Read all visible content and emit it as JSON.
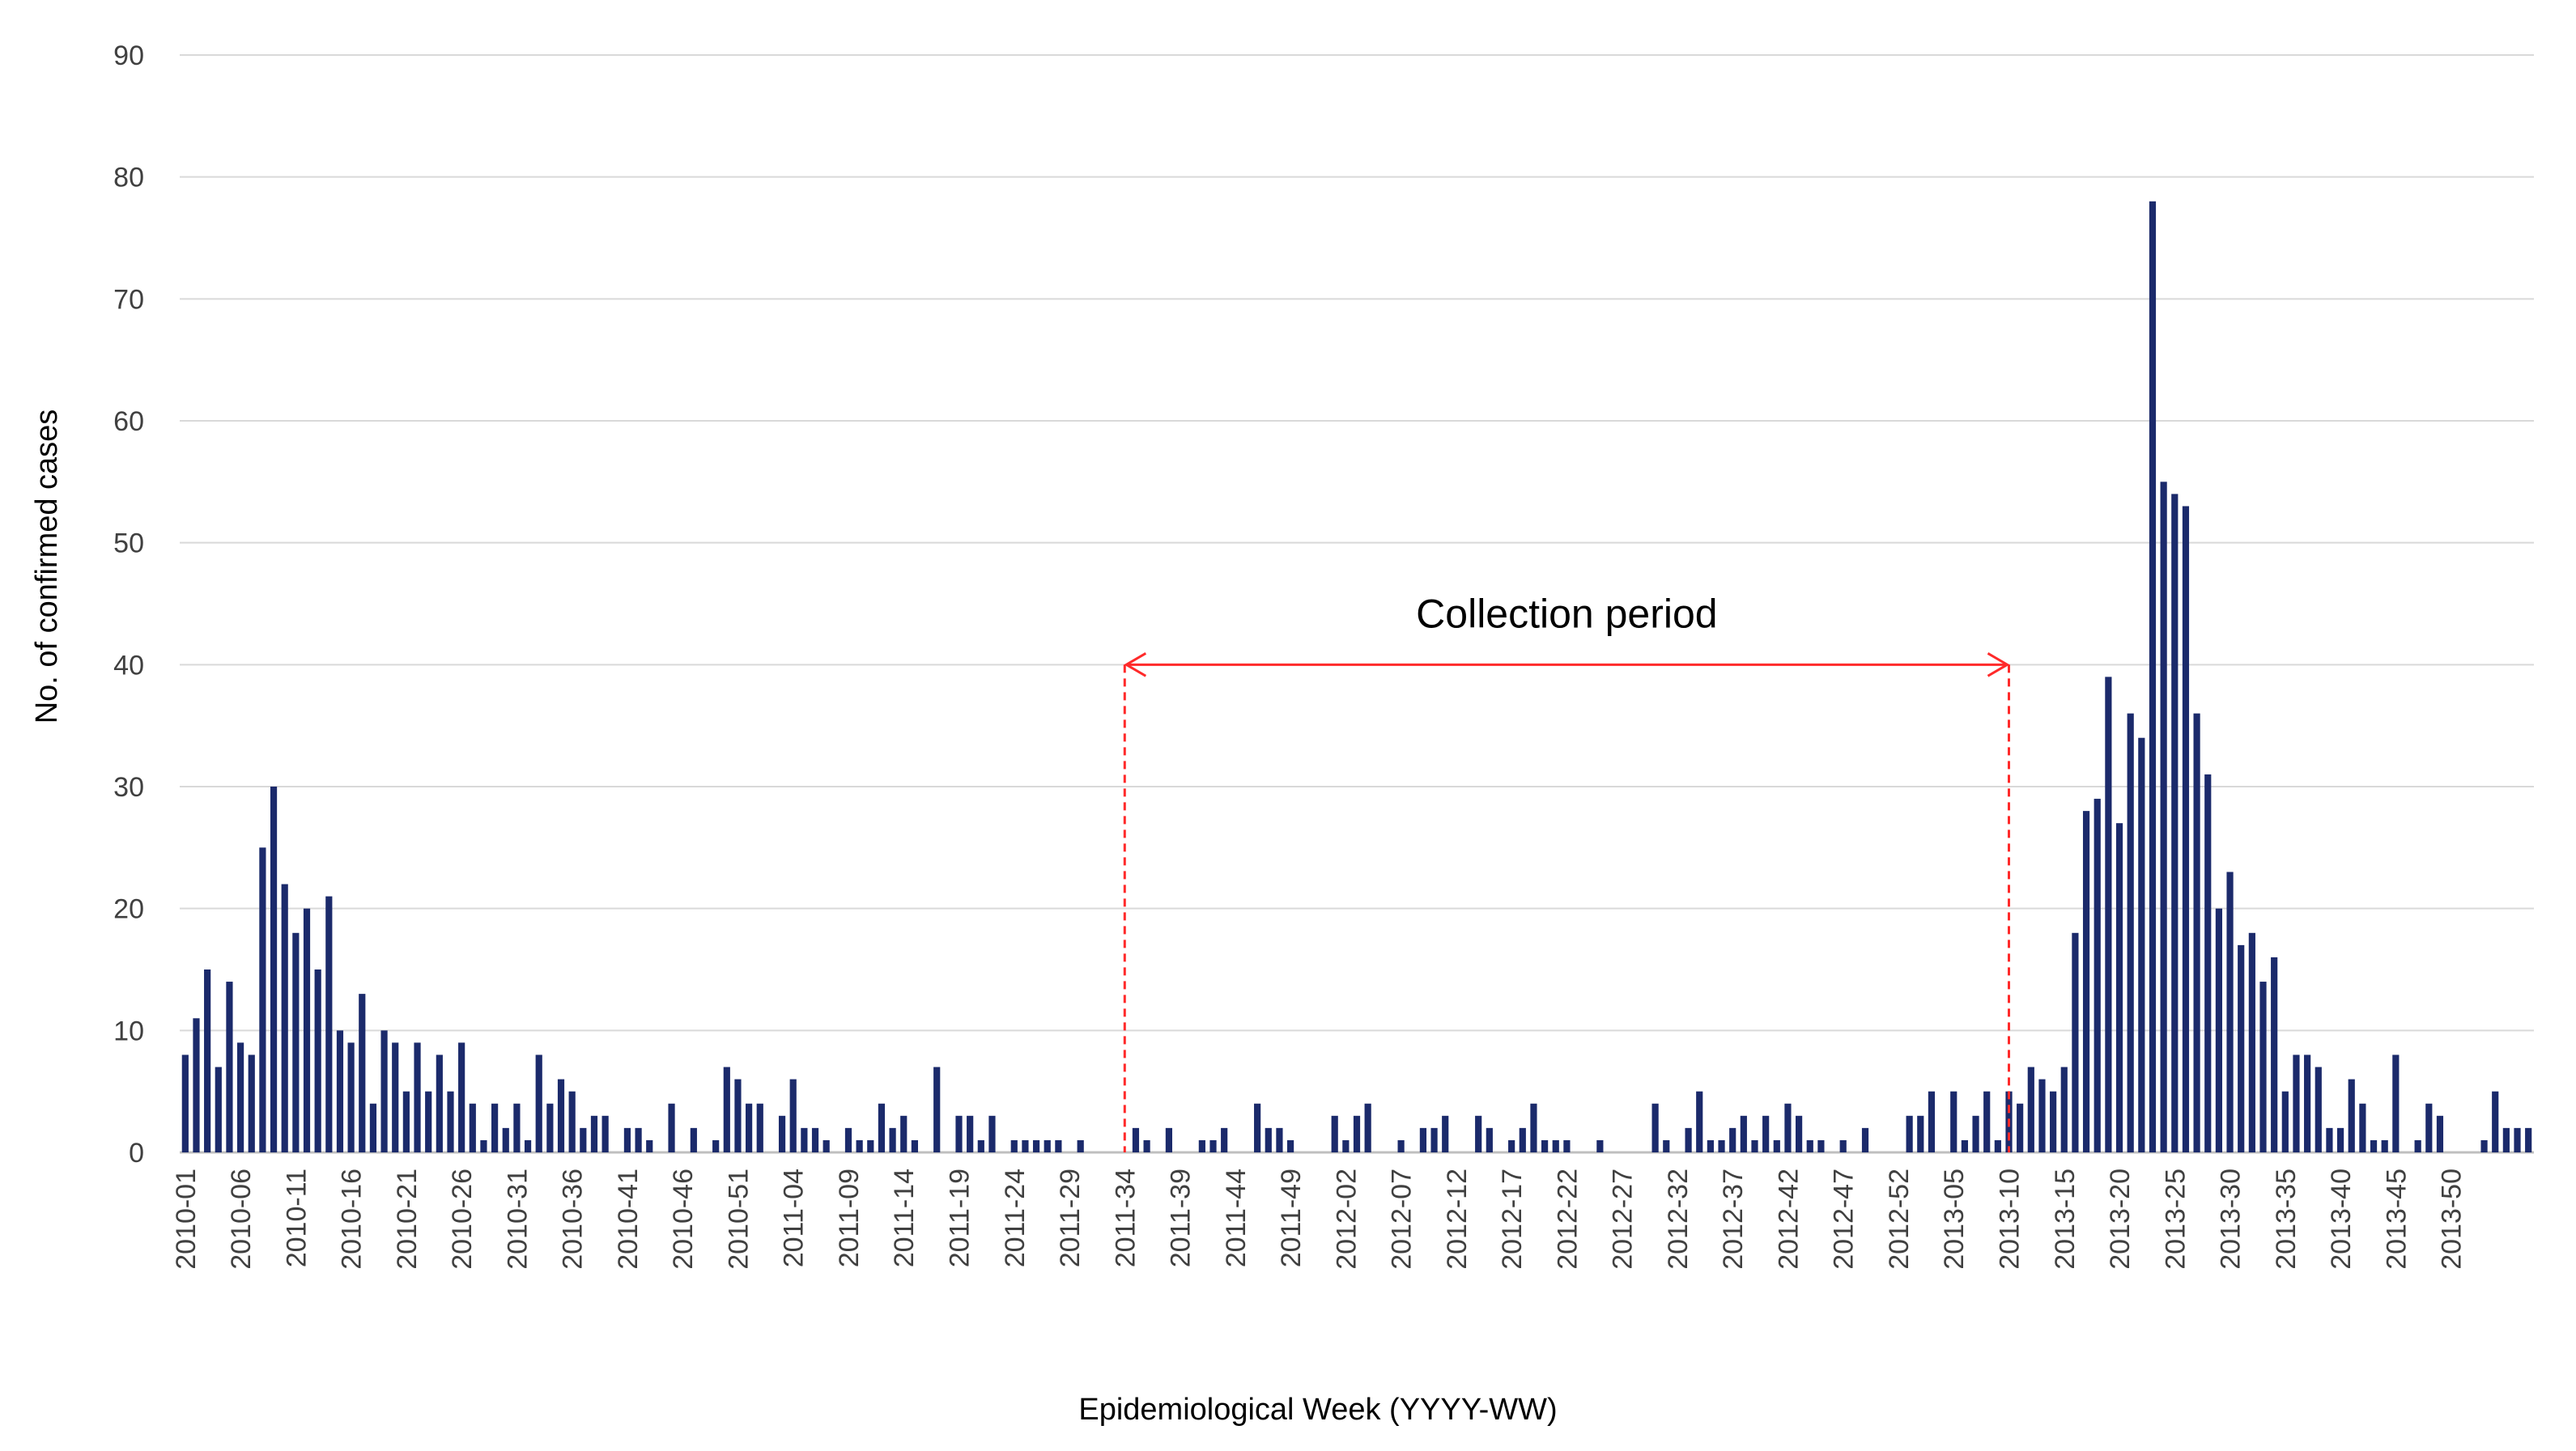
{
  "chart_data": {
    "type": "bar",
    "title": "",
    "xlabel": "Epidemiological Week (YYYY-WW)",
    "ylabel": "No. of confirmed cases",
    "ylim": [
      0,
      90
    ],
    "yticks": [
      "0",
      "10",
      "20",
      "30",
      "40",
      "50",
      "60",
      "70",
      "80",
      "90"
    ],
    "grid": true,
    "tick_labels": [
      "2010-01",
      "2010-06",
      "2010-11",
      "2010-16",
      "2010-21",
      "2010-26",
      "2010-31",
      "2010-36",
      "2010-41",
      "2010-46",
      "2010-51",
      "2011-04",
      "2011-09",
      "2011-14",
      "2011-19",
      "2011-24",
      "2011-29",
      "2011-34",
      "2011-39",
      "2011-44",
      "2011-49",
      "2012-02",
      "2012-07",
      "2012-12",
      "2012-17",
      "2012-22",
      "2012-27",
      "2012-32",
      "2012-37",
      "2012-42",
      "2012-47",
      "2012-52",
      "2013-05",
      "2013-10",
      "2013-15",
      "2013-20",
      "2013-25",
      "2013-30",
      "2013-35",
      "2013-40",
      "2013-45",
      "2013-50"
    ],
    "values": [
      8,
      11,
      15,
      7,
      14,
      9,
      8,
      25,
      30,
      22,
      18,
      20,
      15,
      21,
      10,
      9,
      13,
      4,
      10,
      9,
      5,
      9,
      5,
      8,
      5,
      9,
      4,
      1,
      4,
      2,
      4,
      1,
      8,
      4,
      6,
      5,
      2,
      3,
      3,
      0,
      2,
      2,
      1,
      0,
      4,
      0,
      2,
      0,
      1,
      7,
      6,
      4,
      4,
      0,
      3,
      6,
      2,
      2,
      1,
      0,
      2,
      1,
      1,
      4,
      2,
      3,
      1,
      0,
      7,
      0,
      3,
      3,
      1,
      3,
      0,
      1,
      1,
      1,
      1,
      1,
      0,
      1,
      0,
      0,
      0,
      0,
      2,
      1,
      0,
      2,
      0,
      0,
      1,
      1,
      2,
      0,
      0,
      4,
      2,
      2,
      1,
      0,
      0,
      0,
      3,
      1,
      3,
      4,
      0,
      0,
      1,
      0,
      2,
      2,
      3,
      0,
      0,
      3,
      2,
      0,
      1,
      2,
      4,
      1,
      1,
      1,
      0,
      0,
      1,
      0,
      0,
      0,
      0,
      4,
      1,
      0,
      2,
      5,
      1,
      1,
      2,
      3,
      1,
      3,
      1,
      4,
      3,
      1,
      1,
      0,
      1,
      0,
      2,
      0,
      0,
      0,
      3,
      3,
      5,
      0,
      5,
      1,
      3,
      5,
      1,
      5,
      4,
      7,
      6,
      5,
      7,
      18,
      28,
      29,
      39,
      27,
      36,
      34,
      78,
      55,
      54,
      53,
      36,
      31,
      20,
      23,
      17,
      18,
      14,
      16,
      5,
      8,
      8,
      7,
      2,
      2,
      6,
      4,
      1,
      1,
      8,
      0,
      1,
      4,
      3,
      0,
      0,
      0,
      1,
      5,
      2,
      2,
      2
    ],
    "bar_color": "#1b2a6b",
    "annotations": [
      {
        "text": "Collection period",
        "from_category": "2011-34",
        "to_category": "2013-10",
        "y": 40,
        "color": "#ff2a2a"
      }
    ]
  }
}
